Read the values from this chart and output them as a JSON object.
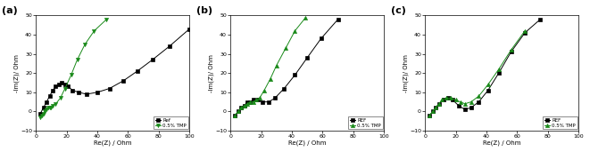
{
  "title_a": "(a)",
  "title_b": "(b)",
  "title_c": "(c)",
  "xlabel": "Re(Z) / Ohm",
  "ylabel": "-Im(Z)/ Ohm",
  "xlim": [
    0,
    100
  ],
  "ylim": [
    -10,
    50
  ],
  "yticks": [
    -10,
    0,
    10,
    20,
    30,
    40,
    50
  ],
  "xticks": [
    0,
    20,
    40,
    60,
    80,
    100
  ],
  "legend_ref_a": "Ref",
  "legend_tmp_a": "0.5% TMP",
  "legend_ref_bc": "REF",
  "legend_tmp_bc": "0.5% TMP",
  "ref_color": "#000000",
  "tmp_color": "#1a8a1a",
  "ref_marker": "s",
  "tmp_marker_a": "v",
  "tmp_marker_bc": "^",
  "a_ref_x": [
    3,
    5,
    7,
    9,
    11,
    13,
    15,
    17,
    19,
    21,
    24,
    28,
    33,
    40,
    48,
    57,
    66,
    76,
    87,
    100
  ],
  "a_ref_y": [
    -1,
    2,
    5,
    8,
    11,
    13,
    14,
    15,
    14,
    13,
    11,
    10,
    9,
    10,
    12,
    16,
    21,
    27,
    34,
    43
  ],
  "a_tmp_x": [
    3,
    4,
    5,
    6,
    7,
    8,
    9,
    10,
    11,
    13,
    16,
    19,
    23,
    27,
    32,
    38,
    46
  ],
  "a_tmp_y": [
    -3,
    -2,
    -1,
    0,
    1,
    2,
    2,
    2,
    3,
    4,
    7,
    12,
    19,
    27,
    35,
    42,
    48
  ],
  "b_ref_x": [
    3,
    5,
    7,
    9,
    11,
    13,
    15,
    18,
    21,
    25,
    29,
    35,
    42,
    50,
    59,
    70
  ],
  "b_ref_y": [
    -2,
    0,
    2,
    3,
    5,
    5,
    6,
    6,
    5,
    5,
    7,
    12,
    19,
    28,
    38,
    48
  ],
  "b_tmp_x": [
    3,
    5,
    7,
    9,
    11,
    13,
    15,
    17,
    19,
    22,
    26,
    30,
    36,
    42,
    49
  ],
  "b_tmp_y": [
    -2,
    0,
    2,
    3,
    4,
    5,
    5,
    6,
    7,
    11,
    17,
    24,
    33,
    42,
    49
  ],
  "c_ref_x": [
    3,
    5,
    7,
    9,
    12,
    15,
    18,
    22,
    26,
    30,
    35,
    41,
    48,
    56,
    65,
    75
  ],
  "c_ref_y": [
    -2,
    0,
    2,
    4,
    6,
    7,
    6,
    3,
    1,
    2,
    5,
    11,
    20,
    31,
    41,
    48
  ],
  "c_tmp_x": [
    3,
    5,
    7,
    9,
    11,
    14,
    17,
    20,
    23,
    26,
    30,
    35,
    41,
    48,
    56,
    65
  ],
  "c_tmp_y": [
    -2,
    0,
    2,
    4,
    6,
    7,
    7,
    6,
    5,
    4,
    5,
    8,
    14,
    22,
    32,
    42
  ]
}
